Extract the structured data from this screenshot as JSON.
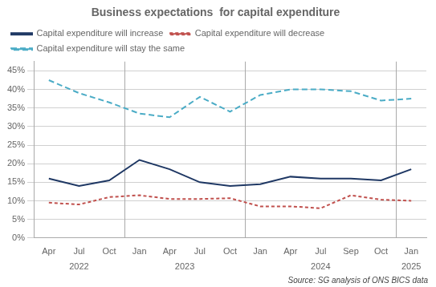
{
  "chart_data": {
    "type": "line",
    "title": "Business expectations  for capital expenditure",
    "categories": [
      "Apr",
      "Jul",
      "Oct",
      "Jan",
      "Apr",
      "Jul",
      "Oct",
      "Jan",
      "Apr",
      "Jul",
      "Sep",
      "Oct",
      "Jan"
    ],
    "annotations": [
      {
        "text": "2022",
        "categories": [
          0,
          1,
          2
        ]
      },
      {
        "text": "2023",
        "categories": [
          3,
          4,
          5,
          6
        ]
      },
      {
        "text": "2024",
        "categories": [
          7,
          8,
          9,
          10,
          11
        ]
      },
      {
        "text": "2025",
        "categories": [
          12
        ]
      }
    ],
    "series": [
      {
        "name": "Capital expenditure will increase",
        "color": "#1F3864",
        "line_style": "solid",
        "values": [
          0.16,
          0.14,
          0.155,
          0.21,
          0.185,
          0.15,
          0.14,
          0.145,
          0.165,
          0.16,
          0.16,
          0.155,
          0.185
        ]
      },
      {
        "name": "Capital expenditure will decrease",
        "color": "#C0504D",
        "line_style": "dashed",
        "values": [
          0.095,
          0.09,
          0.11,
          0.115,
          0.105,
          0.105,
          0.107,
          0.085,
          0.085,
          0.08,
          0.115,
          0.103,
          0.1
        ]
      },
      {
        "name": "Capital expenditure will stay the same",
        "color": "#4BACC6",
        "line_style": "long_dashed",
        "values": [
          0.425,
          0.39,
          0.365,
          0.335,
          0.325,
          0.38,
          0.34,
          0.385,
          0.4,
          0.4,
          0.395,
          0.37,
          0.375
        ]
      }
    ],
    "ylim": [
      0,
      0.475
    ],
    "yticks": [
      {
        "value": 0.0,
        "label": "0%"
      },
      {
        "value": 0.05,
        "label": "5%"
      },
      {
        "value": 0.1,
        "label": "10%"
      },
      {
        "value": 0.15,
        "label": "15%"
      },
      {
        "value": 0.2,
        "label": "20%"
      },
      {
        "value": 0.25,
        "label": "25%"
      },
      {
        "value": 0.3,
        "label": "30%"
      },
      {
        "value": 0.35,
        "label": "35%"
      },
      {
        "value": 0.4,
        "label": "40%"
      },
      {
        "value": 0.45,
        "label": "45%"
      }
    ],
    "grid": true,
    "legend": "top",
    "source": "Source: SG analysis of ONS BICS data"
  }
}
